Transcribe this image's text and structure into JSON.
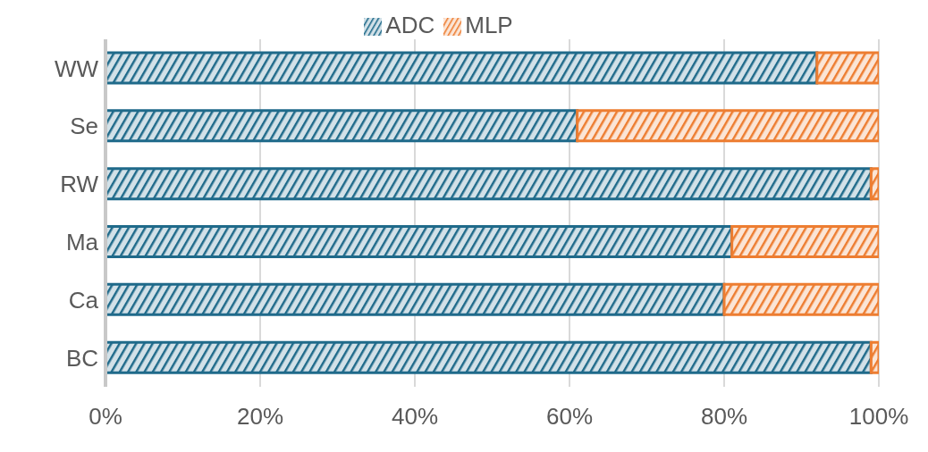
{
  "chart_data": {
    "type": "bar",
    "orientation": "horizontal",
    "stacked": true,
    "categories": [
      "WW",
      "Se",
      "RW",
      "Ma",
      "Ca",
      "BC"
    ],
    "series": [
      {
        "name": "ADC",
        "color": "#1f6a8a",
        "values": [
          92,
          61,
          99,
          81,
          80,
          99
        ]
      },
      {
        "name": "MLP",
        "color": "#ed7d31",
        "values": [
          8,
          39,
          1,
          19,
          20,
          1
        ]
      }
    ],
    "xlim": [
      0,
      100
    ],
    "xticks": [
      {
        "value": 0,
        "label": "0%"
      },
      {
        "value": 20,
        "label": "20%"
      },
      {
        "value": 40,
        "label": "40%"
      },
      {
        "value": 60,
        "label": "60%"
      },
      {
        "value": 80,
        "label": "80%"
      },
      {
        "value": 100,
        "label": "100%"
      }
    ],
    "grid": "x",
    "legend": "top"
  }
}
